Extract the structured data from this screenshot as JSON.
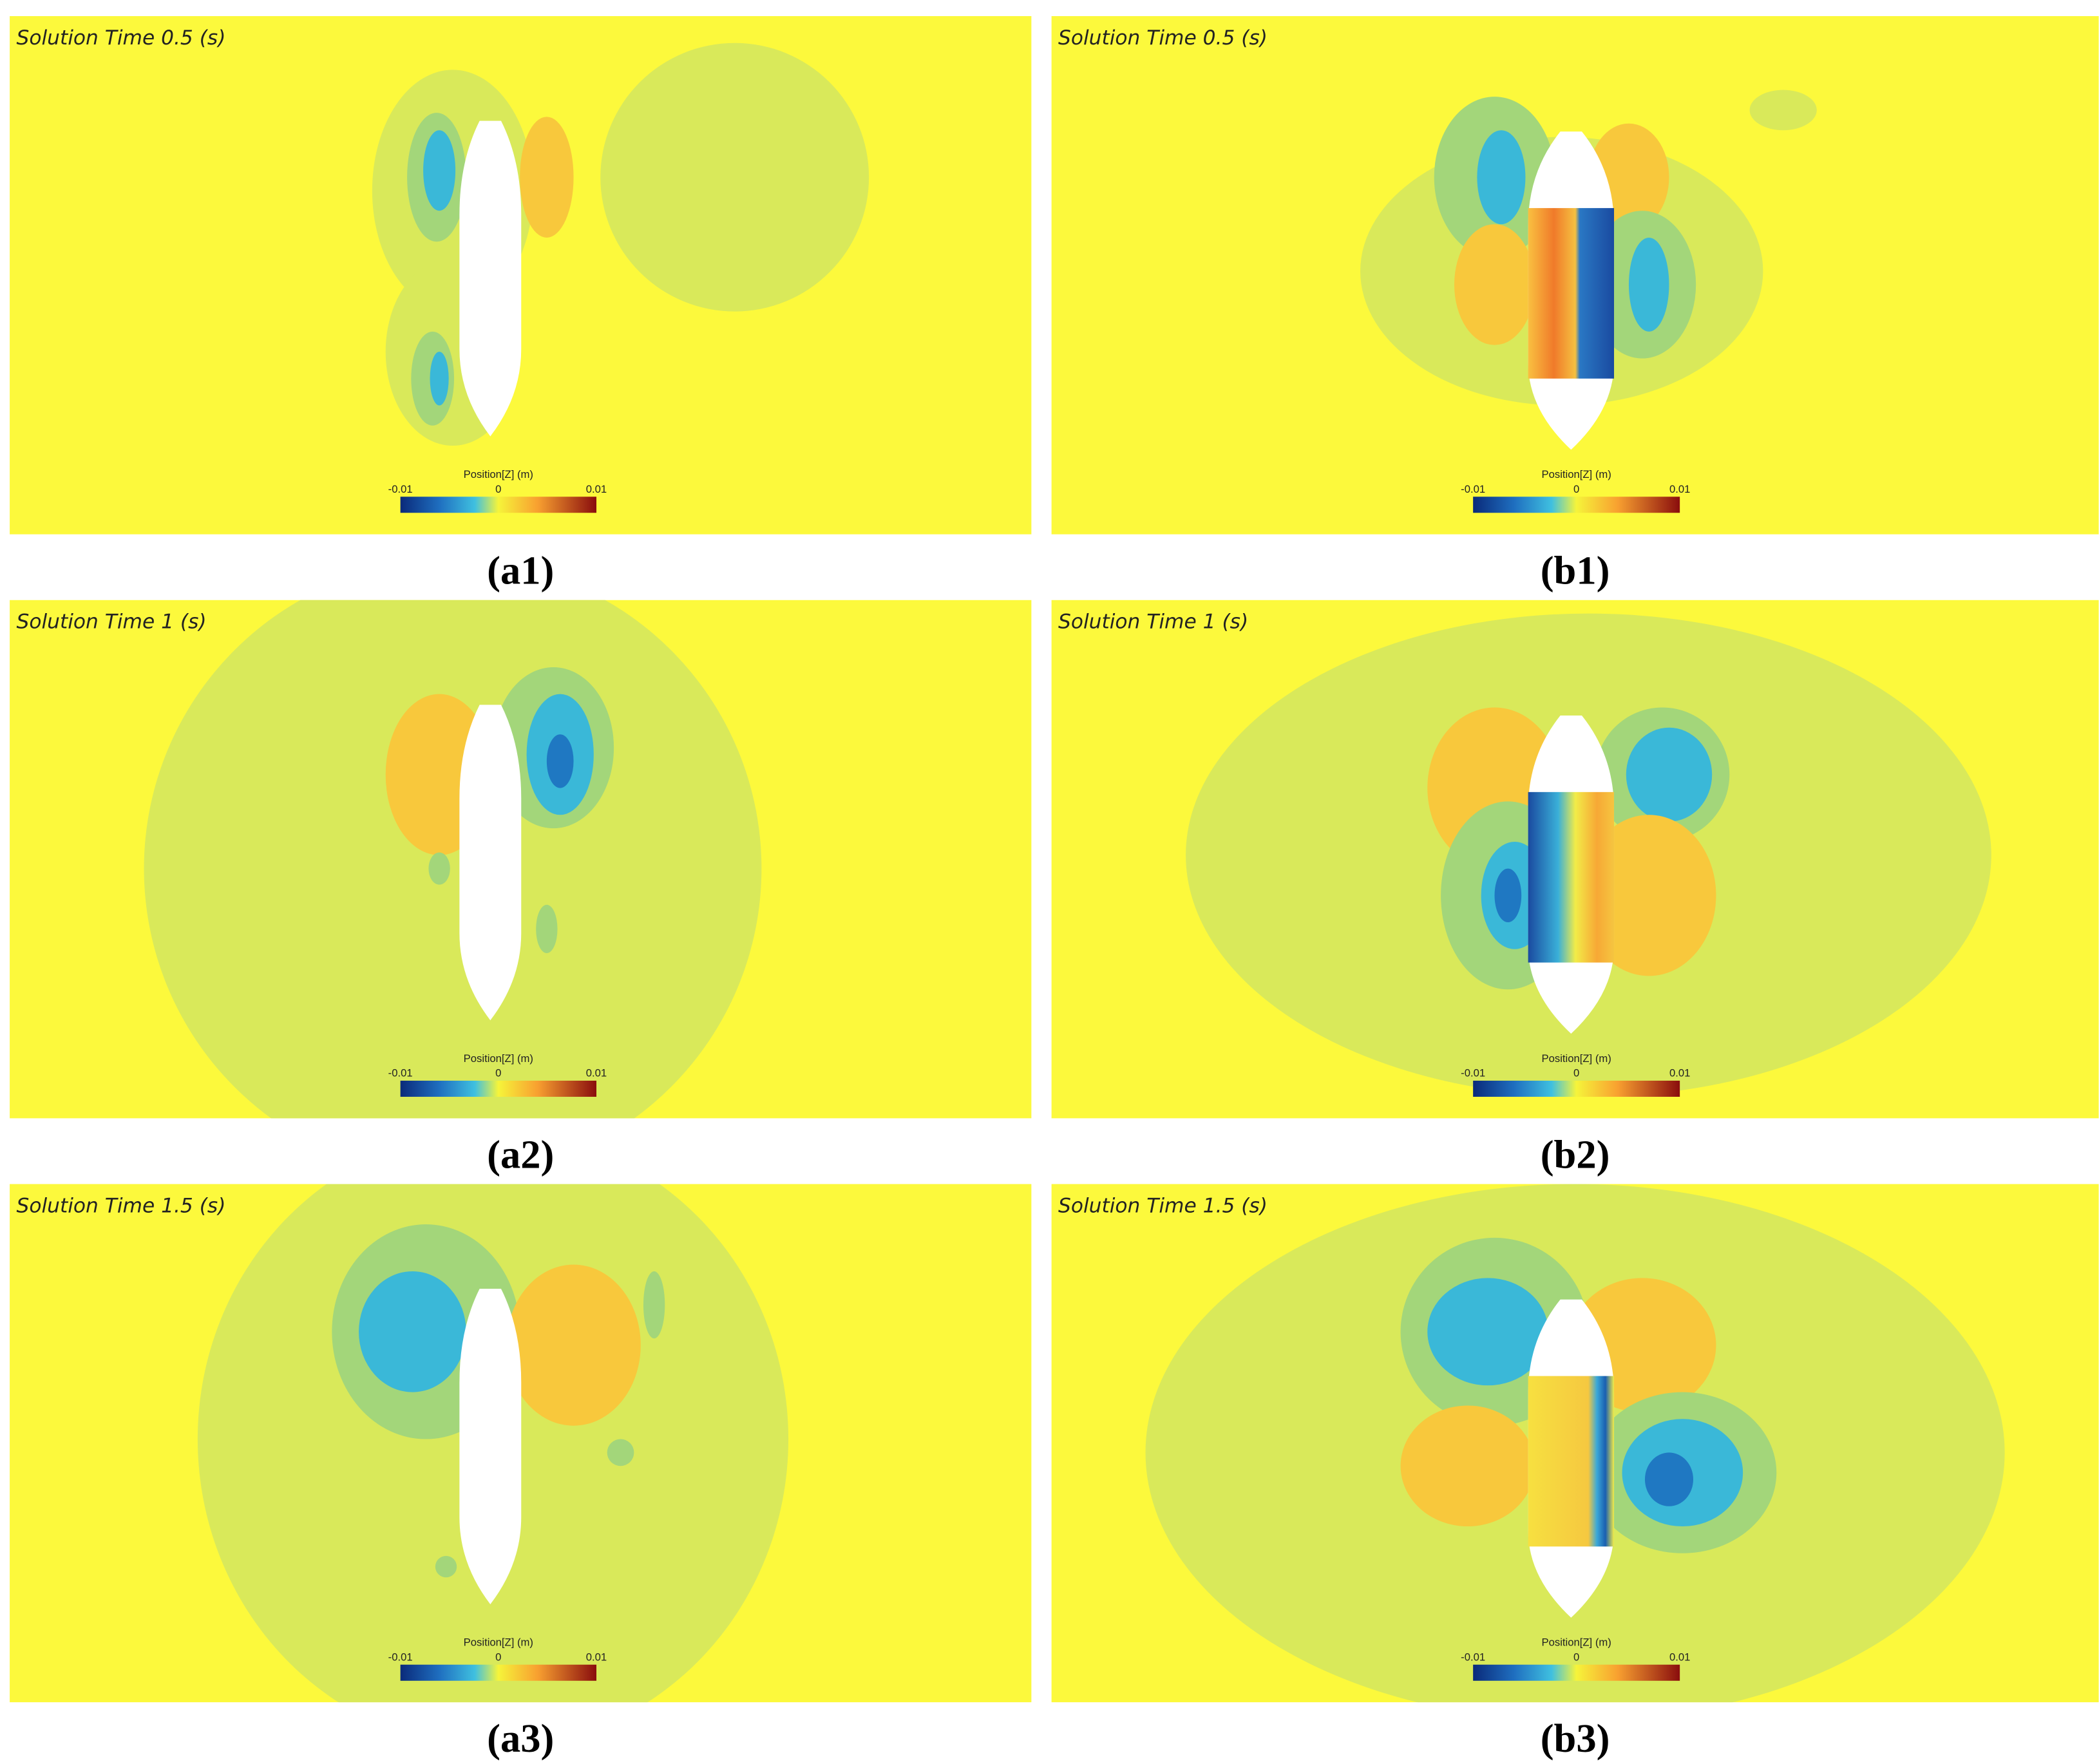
{
  "panels": [
    {
      "time_label": "Solution Time 0.5 (s)",
      "colorbar": {
        "title": "Position[Z] (m)",
        "ticks": [
          "-0.01",
          "0",
          "0.01"
        ]
      },
      "caption": "(a1)"
    },
    {
      "time_label": "Solution Time 0.5 (s)",
      "colorbar": {
        "title": "Position[Z] (m)",
        "ticks": [
          "-0.01",
          "0",
          "0.01"
        ]
      },
      "caption": "(b1)"
    },
    {
      "time_label": "Solution Time 1 (s)",
      "colorbar": {
        "title": "Position[Z] (m)",
        "ticks": [
          "-0.01",
          "0",
          "0.01"
        ]
      },
      "caption": "(a2)"
    },
    {
      "time_label": "Solution Time 1 (s)",
      "colorbar": {
        "title": "Position[Z] (m)",
        "ticks": [
          "-0.01",
          "0",
          "0.01"
        ]
      },
      "caption": "(b2)"
    },
    {
      "time_label": "Solution Time 1.5 (s)",
      "colorbar": {
        "title": "Position[Z] (m)",
        "ticks": [
          "-0.01",
          "0",
          "0.01"
        ]
      },
      "caption": "(a3)"
    },
    {
      "time_label": "Solution Time 1.5 (s)",
      "colorbar": {
        "title": "Position[Z] (m)",
        "ticks": [
          "-0.01",
          "0",
          "0.01"
        ]
      },
      "caption": "(b3)"
    }
  ]
}
